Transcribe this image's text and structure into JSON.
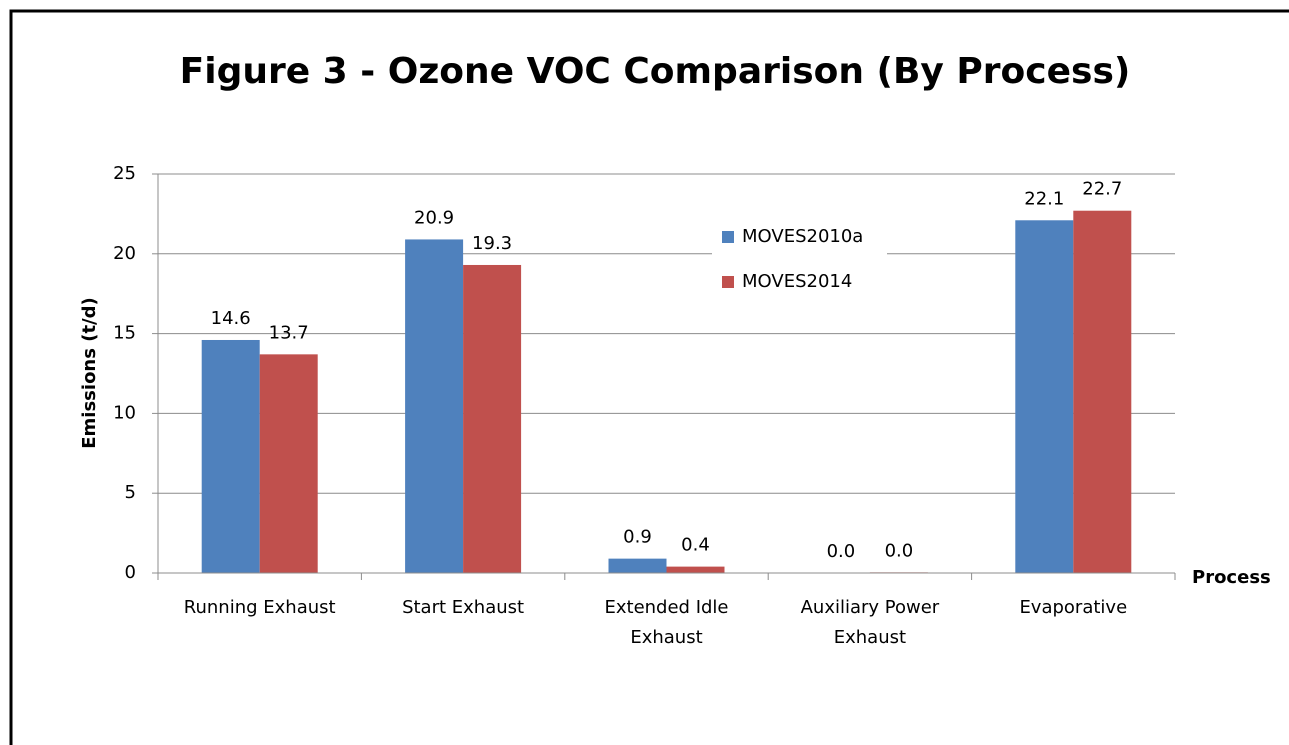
{
  "chart_data": {
    "type": "bar",
    "title": "Figure 3 - Ozone VOC Comparison (By Process)",
    "y_label": "Emissions (t/d)",
    "x_label": "Process",
    "categories": [
      "Running Exhaust",
      "Start Exhaust",
      "Extended Idle Exhaust",
      "Auxiliary Power Exhaust",
      "Evaporative"
    ],
    "series": [
      {
        "name": "MOVES2010a",
        "color": "#4f81bd",
        "values": [
          14.6,
          20.9,
          0.9,
          0,
          22.1
        ],
        "value_labels": [
          "14.6",
          "20.9",
          "0.9",
          "0.0",
          "22.1"
        ]
      },
      {
        "name": "MOVES2014",
        "color": "#c0504d",
        "values": [
          13.7,
          19.3,
          0.4,
          0.04,
          22.7
        ],
        "value_labels": [
          "13.7",
          "19.3",
          "0.4",
          "0.0",
          "22.7"
        ]
      }
    ],
    "ylim": [
      0,
      25
    ],
    "yticks": [
      0,
      5,
      10,
      15,
      20,
      25
    ],
    "grid": true
  }
}
